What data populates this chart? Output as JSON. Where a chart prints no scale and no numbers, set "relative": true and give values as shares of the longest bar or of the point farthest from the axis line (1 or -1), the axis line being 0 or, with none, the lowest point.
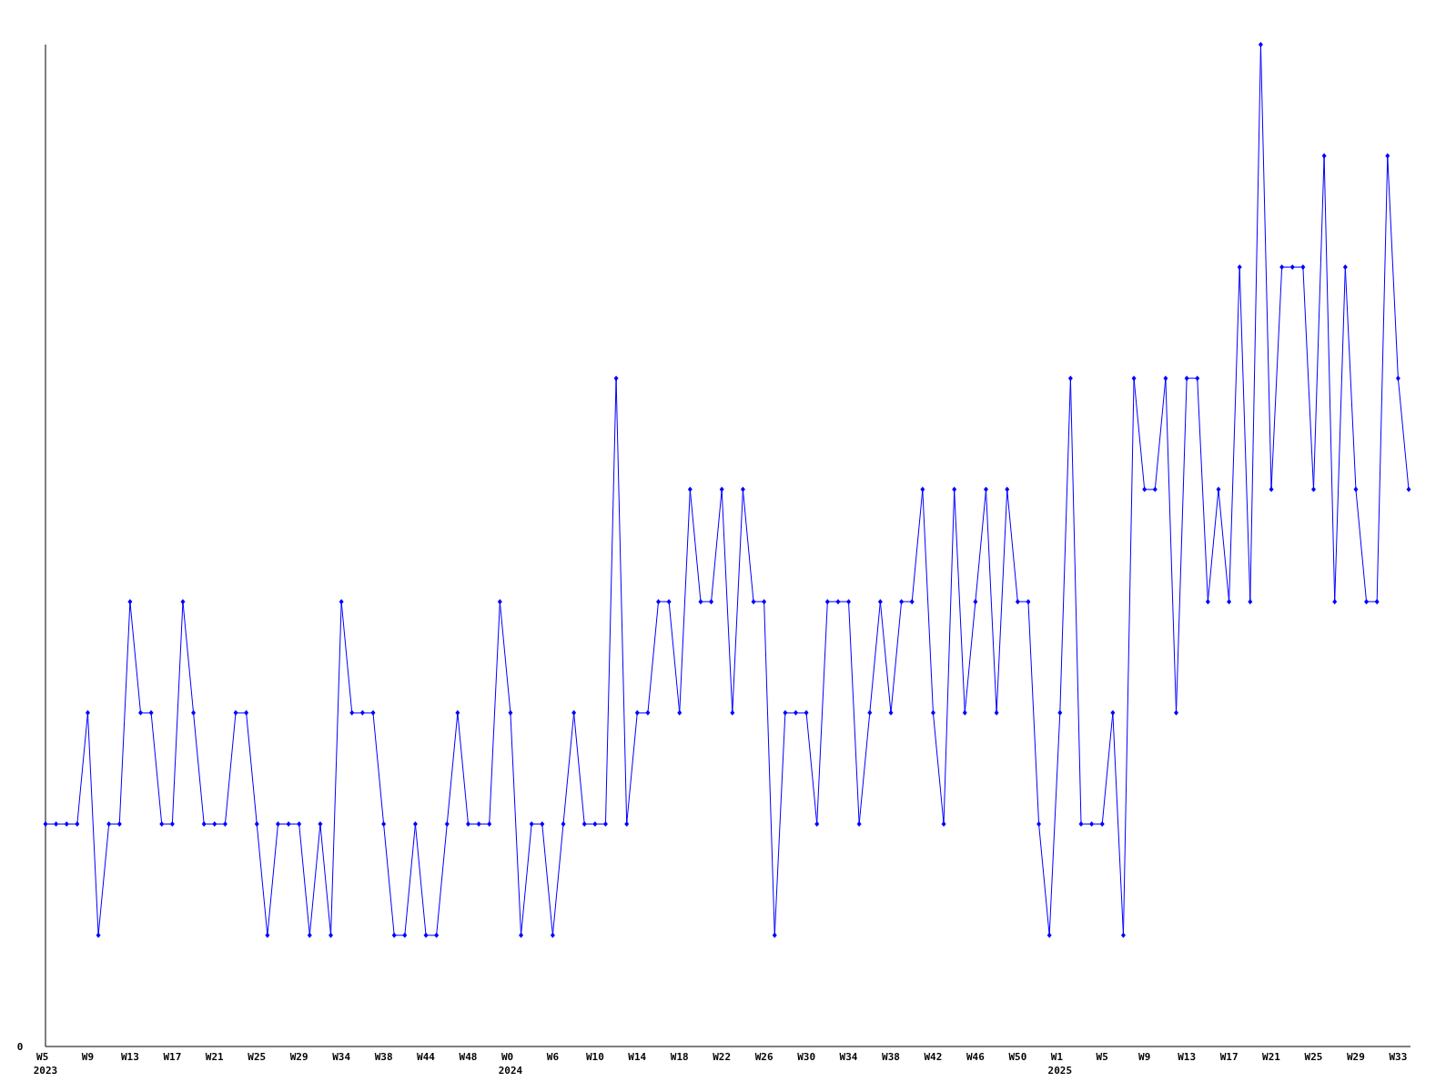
{
  "chart_data": {
    "type": "line",
    "relative": true,
    "annotations": [
      "0"
    ],
    "marker": "diamond",
    "line_style": "solid",
    "categories": [
      "W5 2023",
      null,
      null,
      null,
      "W9",
      null,
      null,
      null,
      "W13",
      null,
      null,
      null,
      "W17",
      null,
      null,
      null,
      "W21",
      null,
      null,
      null,
      "W25",
      null,
      null,
      null,
      "W29",
      null,
      null,
      null,
      "W34",
      null,
      null,
      null,
      "W38",
      null,
      null,
      null,
      "W44",
      null,
      null,
      null,
      "W48",
      null,
      null,
      null,
      "W0 2024",
      null,
      null,
      null,
      "W6",
      null,
      null,
      null,
      "W10",
      null,
      null,
      null,
      "W14",
      null,
      null,
      null,
      "W18",
      null,
      null,
      null,
      "W22",
      null,
      null,
      null,
      "W26",
      null,
      null,
      null,
      "W30",
      null,
      null,
      null,
      "W34",
      null,
      null,
      null,
      "W38",
      null,
      null,
      null,
      "W42",
      null,
      null,
      null,
      "W46",
      null,
      null,
      null,
      "W50",
      null,
      null,
      null,
      "W1 2025",
      null,
      null,
      null,
      "W5",
      null,
      null,
      null,
      "W9",
      null,
      null,
      null,
      "W13",
      null,
      null,
      null,
      "W17",
      null,
      null,
      null,
      "W21",
      null,
      null,
      null,
      "W25",
      null,
      null,
      null,
      "W29",
      null,
      null,
      null,
      "W33",
      null
    ],
    "series": [
      {
        "color": "#0000ff",
        "values": [
          0.222,
          0.222,
          0.222,
          0.222,
          0.333,
          0.111,
          0.222,
          0.222,
          0.444,
          0.333,
          0.333,
          0.222,
          0.222,
          0.444,
          0.333,
          0.222,
          0.222,
          0.222,
          0.333,
          0.333,
          0.222,
          0.111,
          0.222,
          0.222,
          0.222,
          0.111,
          0.222,
          0.111,
          0.444,
          0.333,
          0.333,
          0.333,
          0.222,
          0.111,
          0.111,
          0.222,
          0.111,
          0.111,
          0.222,
          0.333,
          0.222,
          0.222,
          0.222,
          0.444,
          0.333,
          0.111,
          0.222,
          0.222,
          0.111,
          0.222,
          0.333,
          0.222,
          0.222,
          0.222,
          0.667,
          0.222,
          0.333,
          0.333,
          0.444,
          0.444,
          0.333,
          0.556,
          0.444,
          0.444,
          0.556,
          0.333,
          0.556,
          0.444,
          0.444,
          0.111,
          0.333,
          0.333,
          0.333,
          0.222,
          0.444,
          0.444,
          0.444,
          0.222,
          0.333,
          0.444,
          0.333,
          0.444,
          0.444,
          0.556,
          0.333,
          0.222,
          0.556,
          0.333,
          0.444,
          0.556,
          0.333,
          0.556,
          0.444,
          0.444,
          0.222,
          0.111,
          0.333,
          0.667,
          0.222,
          0.222,
          0.222,
          0.333,
          0.111,
          0.667,
          0.556,
          0.556,
          0.667,
          0.333,
          0.667,
          0.667,
          0.444,
          0.556,
          0.444,
          0.778,
          0.444,
          1,
          0.556,
          0.778,
          0.778,
          0.778,
          0.556,
          0.889,
          0.444,
          0.778,
          0.556,
          0.444,
          0.444,
          0.889,
          0.667,
          0.556
        ]
      }
    ]
  }
}
